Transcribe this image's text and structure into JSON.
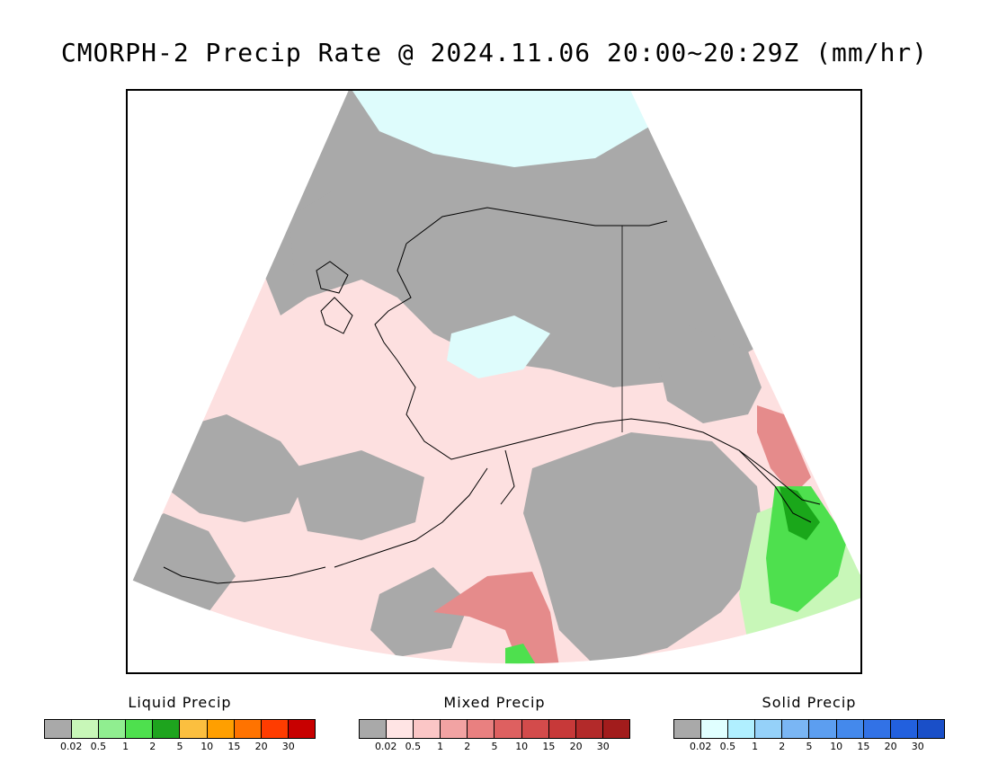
{
  "title": "CMORPH-2 Precip Rate @ 2024.11.06 20:00~20:29Z (mm/hr)",
  "map": {
    "region": "Alaska",
    "projection": "polar stereographic sector",
    "colors": {
      "no_precip": "#a9a9a9",
      "mixed_light": "#fde0e0",
      "mixed_medium": "#e58b8b",
      "liquid_light": "#c8f7b8",
      "liquid_medium": "#4ee04e",
      "liquid_dark": "#1aa71a",
      "solid_light": "#defcfc",
      "coastline": "#000000"
    }
  },
  "legends": [
    {
      "title": "Liquid Precip",
      "colors": [
        "#a9a9a9",
        "#c8f7b8",
        "#90ee90",
        "#4ee04e",
        "#1ea41e",
        "#fbbf3f",
        "#ff9f00",
        "#ff7300",
        "#ff3c00",
        "#c80000"
      ],
      "ticks": [
        "0.02",
        "0.5",
        "1",
        "2",
        "5",
        "10",
        "15",
        "20",
        "30"
      ]
    },
    {
      "title": "Mixed Precip",
      "colors": [
        "#a9a9a9",
        "#ffe4e4",
        "#fbc6c6",
        "#f2a3a3",
        "#e98080",
        "#de6060",
        "#d34b4b",
        "#c73939",
        "#b32a2a",
        "#a21c1c"
      ],
      "ticks": [
        "0.02",
        "0.5",
        "1",
        "2",
        "5",
        "10",
        "15",
        "20",
        "30"
      ]
    },
    {
      "title": "Solid Precip",
      "colors": [
        "#a9a9a9",
        "#e0ffff",
        "#b0efff",
        "#95d1f9",
        "#7ab6f4",
        "#5c9ef0",
        "#4489ec",
        "#3272e6",
        "#2260de",
        "#1a4fc8"
      ],
      "ticks": [
        "0.02",
        "0.5",
        "1",
        "2",
        "5",
        "10",
        "15",
        "20",
        "30"
      ]
    }
  ]
}
